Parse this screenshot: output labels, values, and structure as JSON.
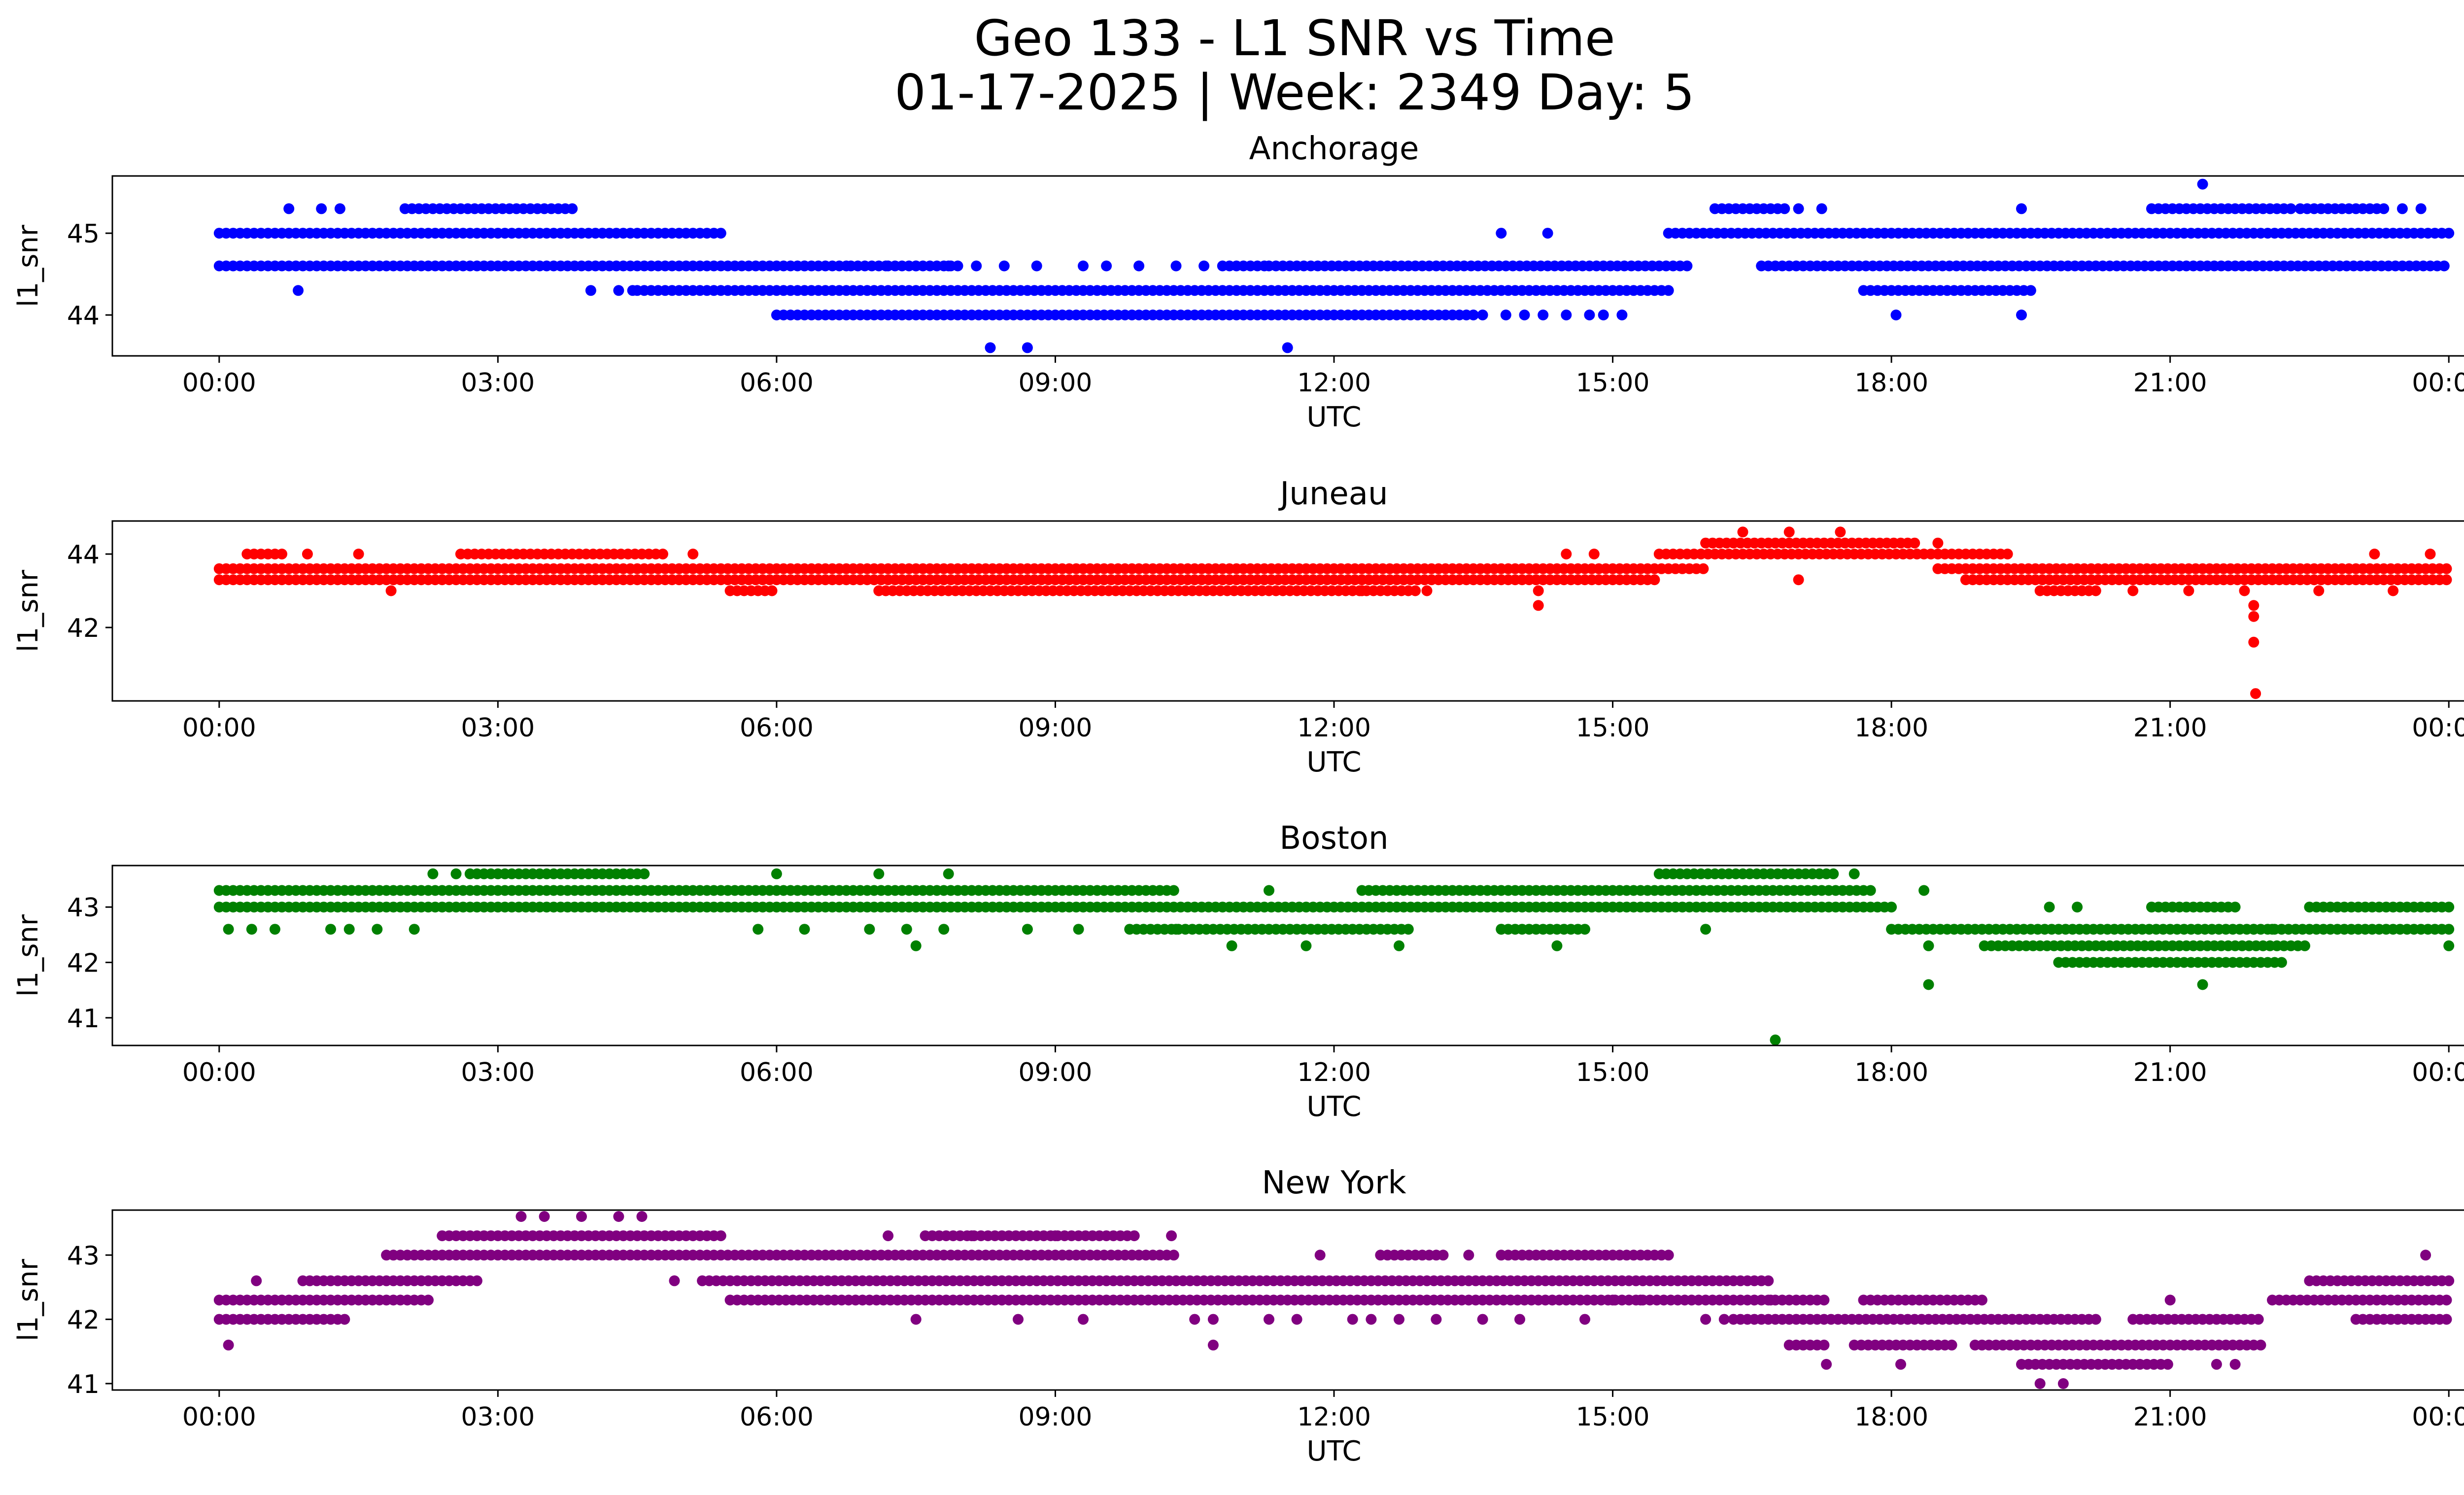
{
  "chart_data": {
    "title": [
      "Geo 133 - L1 SNR vs Time",
      "01-17-2025 | Week: 2349 Day: 5"
    ],
    "panels": [
      {
        "type": "scatter",
        "title": "Anchorage",
        "xlabel": "UTC",
        "ylabel": "l1_snr",
        "color": "#0000ff",
        "xlim": [
          -1.15,
          25.15
        ],
        "ylim": [
          43.5,
          45.7
        ],
        "yticks": [
          44,
          45
        ],
        "xticks": [
          0,
          3,
          6,
          9,
          12,
          15,
          18,
          21,
          24
        ],
        "xtick_labels": [
          "00:00",
          "03:00",
          "06:00",
          "09:00",
          "12:00",
          "15:00",
          "18:00",
          "21:00",
          "00:00"
        ],
        "grid": false,
        "bands": [
          {
            "y": 45.0,
            "ranges": [
              [
                0,
                5.4
              ],
              [
                15.6,
                24
              ]
            ]
          },
          {
            "y": 44.6,
            "ranges": [
              [
                0,
                6.8
              ],
              [
                6.8,
                7.2
              ],
              [
                7.2,
                8.0
              ],
              [
                10.8,
                11.3
              ],
              [
                11.3,
                15.8
              ],
              [
                16.6,
                24
              ]
            ]
          },
          {
            "y": 44.3,
            "ranges": [
              [
                4.5,
                15.6
              ],
              [
                17.7,
                19.5
              ]
            ]
          },
          {
            "y": 45.3,
            "ranges": [
              [
                2.0,
                3.8
              ],
              [
                16.1,
                16.9
              ],
              [
                20.8,
                22.3
              ],
              [
                22.4,
                23.3
              ]
            ]
          },
          {
            "y": 44.0,
            "ranges": [
              [
                6.0,
                13.5
              ]
            ]
          }
        ],
        "points": [
          [
            0.75,
            45.3
          ],
          [
            1.1,
            45.3
          ],
          [
            1.3,
            45.3
          ],
          [
            0.85,
            44.3
          ],
          [
            4.0,
            44.3
          ],
          [
            4.3,
            44.3
          ],
          [
            4.45,
            44.3
          ],
          [
            8.3,
            43.6
          ],
          [
            8.7,
            43.6
          ],
          [
            11.5,
            43.6
          ],
          [
            13.6,
            44.0
          ],
          [
            13.85,
            44.0
          ],
          [
            14.05,
            44.0
          ],
          [
            14.25,
            44.0
          ],
          [
            14.5,
            44.0
          ],
          [
            14.75,
            44.0
          ],
          [
            14.9,
            44.0
          ],
          [
            15.1,
            44.0
          ],
          [
            13.8,
            45.0
          ],
          [
            14.3,
            45.0
          ],
          [
            17.0,
            45.3
          ],
          [
            17.25,
            45.3
          ],
          [
            18.05,
            44.0
          ],
          [
            19.4,
            44.0
          ],
          [
            19.4,
            45.3
          ],
          [
            21.35,
            45.6
          ],
          [
            23.5,
            45.3
          ],
          [
            23.7,
            45.3
          ],
          [
            6.3,
            44.6
          ],
          [
            7.5,
            44.6
          ],
          [
            7.85,
            44.6
          ],
          [
            8.15,
            44.6
          ],
          [
            8.45,
            44.6
          ],
          [
            8.8,
            44.6
          ],
          [
            9.3,
            44.6
          ],
          [
            9.55,
            44.6
          ],
          [
            9.9,
            44.6
          ],
          [
            10.3,
            44.6
          ],
          [
            10.6,
            44.6
          ],
          [
            12.2,
            44.6
          ]
        ]
      },
      {
        "type": "scatter",
        "title": "Juneau",
        "xlabel": "UTC",
        "ylabel": "l1_snr",
        "color": "#ff0000",
        "xlim": [
          -1.15,
          25.15
        ],
        "ylim": [
          40.0,
          44.9
        ],
        "yticks": [
          42,
          44
        ],
        "xticks": [
          0,
          3,
          6,
          9,
          12,
          15,
          18,
          21,
          24
        ],
        "xtick_labels": [
          "00:00",
          "03:00",
          "06:00",
          "09:00",
          "12:00",
          "15:00",
          "18:00",
          "21:00",
          "00:00"
        ],
        "grid": false,
        "bands": [
          {
            "y": 43.6,
            "ranges": [
              [
                0,
                16.0
              ],
              [
                18.5,
                24
              ]
            ]
          },
          {
            "y": 43.3,
            "ranges": [
              [
                0,
                15.5
              ],
              [
                18.8,
                24
              ]
            ]
          },
          {
            "y": 44.0,
            "ranges": [
              [
                0.3,
                0.7
              ],
              [
                2.6,
                4.8
              ],
              [
                15.5,
                19.3
              ]
            ]
          },
          {
            "y": 44.3,
            "ranges": [
              [
                16.0,
                18.3
              ]
            ]
          },
          {
            "y": 43.0,
            "ranges": [
              [
                5.5,
                6.0
              ],
              [
                7.1,
                12.9
              ],
              [
                19.6,
                20.2
              ]
            ]
          }
        ],
        "points": [
          [
            0.95,
            44.0
          ],
          [
            1.5,
            44.0
          ],
          [
            1.85,
            43.0
          ],
          [
            5.1,
            44.0
          ],
          [
            14.2,
            42.6
          ],
          [
            14.2,
            43.0
          ],
          [
            14.5,
            44.0
          ],
          [
            14.8,
            44.0
          ],
          [
            16.4,
            44.6
          ],
          [
            16.9,
            44.6
          ],
          [
            17.45,
            44.6
          ],
          [
            17.0,
            43.3
          ],
          [
            18.5,
            44.3
          ],
          [
            21.9,
            42.6
          ],
          [
            21.9,
            42.3
          ],
          [
            21.9,
            41.6
          ],
          [
            21.92,
            40.2
          ],
          [
            21.8,
            43.0
          ],
          [
            23.2,
            44.0
          ],
          [
            23.4,
            43.0
          ],
          [
            23.8,
            44.0
          ],
          [
            22.6,
            43.0
          ],
          [
            21.2,
            43.0
          ],
          [
            20.6,
            43.0
          ],
          [
            13.0,
            43.0
          ],
          [
            12.3,
            43.0
          ]
        ]
      },
      {
        "type": "scatter",
        "title": "Boston",
        "xlabel": "UTC",
        "ylabel": "l1_snr",
        "color": "#008000",
        "xlim": [
          -1.15,
          25.15
        ],
        "ylim": [
          40.5,
          43.75
        ],
        "yticks": [
          41,
          42,
          43
        ],
        "xticks": [
          0,
          3,
          6,
          9,
          12,
          15,
          18,
          21,
          24
        ],
        "xtick_labels": [
          "00:00",
          "03:00",
          "06:00",
          "09:00",
          "12:00",
          "15:00",
          "18:00",
          "21:00",
          "00:00"
        ],
        "grid": false,
        "bands": [
          {
            "y": 43.3,
            "ranges": [
              [
                0,
                10.3
              ],
              [
                12.3,
                17.8
              ]
            ]
          },
          {
            "y": 43.0,
            "ranges": [
              [
                0,
                18.0
              ],
              [
                20.8,
                21.7
              ],
              [
                22.5,
                24
              ]
            ]
          },
          {
            "y": 42.6,
            "ranges": [
              [
                9.8,
                12.8
              ],
              [
                13.8,
                14.7
              ],
              [
                18.0,
                21.3
              ],
              [
                21.3,
                24
              ]
            ]
          },
          {
            "y": 43.6,
            "ranges": [
              [
                2.7,
                4.6
              ],
              [
                15.5,
                17.4
              ]
            ]
          },
          {
            "y": 42.3,
            "ranges": [
              [
                19.0,
                22.5
              ]
            ]
          },
          {
            "y": 42.0,
            "ranges": [
              [
                19.8,
                22.2
              ]
            ]
          }
        ],
        "points": [
          [
            0.1,
            42.6
          ],
          [
            0.35,
            42.6
          ],
          [
            0.6,
            42.6
          ],
          [
            1.2,
            42.6
          ],
          [
            1.4,
            42.6
          ],
          [
            1.7,
            42.6
          ],
          [
            2.1,
            42.6
          ],
          [
            2.3,
            43.6
          ],
          [
            2.55,
            43.6
          ],
          [
            6.0,
            43.6
          ],
          [
            7.1,
            43.6
          ],
          [
            7.85,
            43.6
          ],
          [
            5.8,
            42.6
          ],
          [
            6.3,
            42.6
          ],
          [
            7.0,
            42.6
          ],
          [
            7.5,
            42.3
          ],
          [
            7.8,
            42.6
          ],
          [
            8.7,
            42.6
          ],
          [
            9.25,
            42.6
          ],
          [
            10.9,
            42.3
          ],
          [
            11.3,
            43.3
          ],
          [
            11.7,
            42.3
          ],
          [
            12.7,
            42.3
          ],
          [
            13.8,
            42.6
          ],
          [
            14.4,
            42.3
          ],
          [
            16.0,
            42.6
          ],
          [
            16.75,
            40.6
          ],
          [
            17.6,
            43.6
          ],
          [
            18.35,
            43.3
          ],
          [
            18.4,
            42.3
          ],
          [
            18.4,
            41.6
          ],
          [
            19.7,
            43.0
          ],
          [
            20.0,
            43.0
          ],
          [
            21.35,
            41.6
          ],
          [
            21.9,
            42.6
          ],
          [
            22.1,
            42.6
          ],
          [
            24.0,
            42.3
          ],
          [
            7.4,
            42.6
          ],
          [
            10.3,
            42.6
          ]
        ]
      },
      {
        "type": "scatter",
        "title": "New York",
        "xlabel": "UTC",
        "ylabel": "l1_snr",
        "color": "#800080",
        "xlim": [
          -1.15,
          25.15
        ],
        "ylim": [
          40.9,
          43.7
        ],
        "yticks": [
          41,
          42,
          43
        ],
        "xticks": [
          0,
          3,
          6,
          9,
          12,
          15,
          18,
          21,
          24
        ],
        "xtick_labels": [
          "00:00",
          "03:00",
          "06:00",
          "09:00",
          "12:00",
          "15:00",
          "18:00",
          "21:00",
          "00:00"
        ],
        "grid": false,
        "bands": [
          {
            "y": 42.3,
            "ranges": [
              [
                0,
                2.3
              ],
              [
                5.5,
                17.3
              ],
              [
                17.7,
                19.0
              ],
              [
                22.1,
                24
              ]
            ]
          },
          {
            "y": 42.0,
            "ranges": [
              [
                0,
                1.4
              ],
              [
                16.3,
                20.2
              ],
              [
                20.6,
                22.0
              ],
              [
                23.0,
                24
              ]
            ]
          },
          {
            "y": 42.6,
            "ranges": [
              [
                0.9,
                2.8
              ],
              [
                5.2,
                16.7
              ],
              [
                22.5,
                24
              ]
            ]
          },
          {
            "y": 43.0,
            "ranges": [
              [
                1.8,
                10.3
              ],
              [
                12.5,
                13.2
              ],
              [
                13.8,
                15.6
              ]
            ]
          },
          {
            "y": 43.3,
            "ranges": [
              [
                2.4,
                5.4
              ],
              [
                7.6,
                9.9
              ]
            ]
          },
          {
            "y": 41.6,
            "ranges": [
              [
                16.9,
                17.3
              ],
              [
                17.6,
                18.7
              ],
              [
                18.9,
                22.0
              ]
            ]
          },
          {
            "y": 41.3,
            "ranges": [
              [
                19.4,
                21.0
              ]
            ]
          }
        ],
        "points": [
          [
            0.1,
            41.6
          ],
          [
            0.4,
            42.6
          ],
          [
            3.25,
            43.6
          ],
          [
            3.5,
            43.6
          ],
          [
            3.9,
            43.6
          ],
          [
            4.3,
            43.6
          ],
          [
            4.55,
            43.6
          ],
          [
            4.9,
            42.6
          ],
          [
            7.2,
            43.3
          ],
          [
            7.5,
            42.0
          ],
          [
            8.6,
            42.0
          ],
          [
            9.3,
            42.0
          ],
          [
            10.25,
            43.3
          ],
          [
            10.5,
            42.0
          ],
          [
            10.7,
            42.0
          ],
          [
            10.7,
            41.6
          ],
          [
            11.3,
            42.0
          ],
          [
            11.6,
            42.0
          ],
          [
            11.85,
            43.0
          ],
          [
            12.2,
            42.0
          ],
          [
            12.4,
            42.0
          ],
          [
            12.7,
            42.0
          ],
          [
            13.1,
            42.0
          ],
          [
            13.45,
            43.0
          ],
          [
            13.6,
            42.0
          ],
          [
            14.0,
            42.0
          ],
          [
            14.7,
            42.0
          ],
          [
            15.0,
            42.3
          ],
          [
            15.3,
            42.3
          ],
          [
            16.0,
            42.0
          ],
          [
            16.2,
            42.0
          ],
          [
            16.7,
            42.3
          ],
          [
            17.3,
            41.3
          ],
          [
            18.1,
            41.3
          ],
          [
            19.6,
            41.0
          ],
          [
            19.85,
            41.0
          ],
          [
            21.0,
            42.3
          ],
          [
            21.7,
            41.3
          ],
          [
            21.5,
            41.3
          ],
          [
            23.75,
            43.0
          ],
          [
            8.1,
            43.3
          ],
          [
            9.0,
            43.3
          ]
        ]
      }
    ]
  }
}
